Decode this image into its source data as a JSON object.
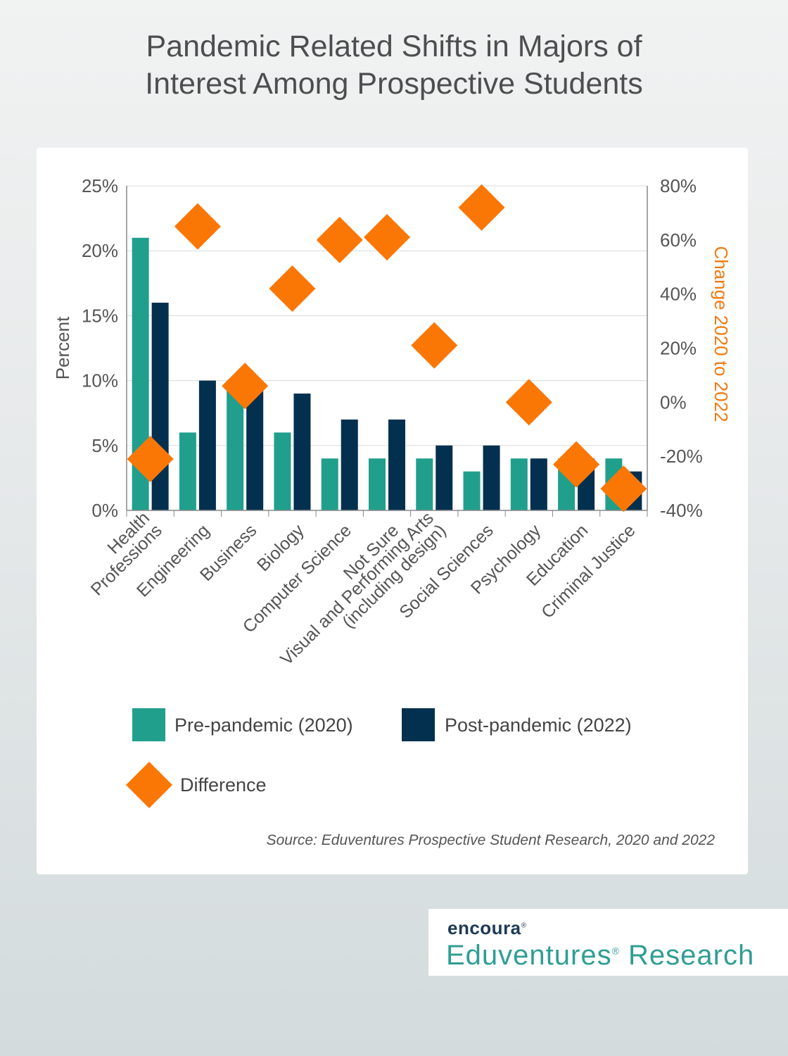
{
  "title": {
    "line1": "Pandemic Related Shifts in Majors of",
    "line2": "Interest Among Prospective Students"
  },
  "colors": {
    "pre": "#209f8c",
    "post": "#04304f",
    "difference": "#fa7706",
    "axis": "#888888",
    "grid": "#d9d9d9",
    "text": "#555555",
    "right_axis_title": "#f07a12"
  },
  "chart_data": {
    "type": "bar",
    "categories": [
      "Health Professions",
      "Engineering",
      "Business",
      "Biology",
      "Computer Science",
      "Not Sure",
      "Visual and Performing Arts (including design)",
      "Social Sciences",
      "Psychology",
      "Education",
      "Criminal Justice"
    ],
    "category_label_lines": [
      [
        "Health",
        "Professions"
      ],
      [
        "Engineering"
      ],
      [
        "Business"
      ],
      [
        "Biology"
      ],
      [
        "Computer Science"
      ],
      [
        "Not Sure"
      ],
      [
        "Visual and Performing Arts",
        "(including design)"
      ],
      [
        "Social Sciences"
      ],
      [
        "Psychology"
      ],
      [
        "Education"
      ],
      [
        "Criminal Justice"
      ]
    ],
    "series": [
      {
        "name": "Pre-pandemic (2020)",
        "axis": "left",
        "values": [
          21,
          6,
          9.5,
          6,
          4,
          4,
          4,
          3,
          4,
          4,
          4
        ]
      },
      {
        "name": "Post-pandemic (2022)",
        "axis": "left",
        "values": [
          16,
          10,
          9.5,
          9,
          7,
          7,
          5,
          5,
          4,
          4,
          3
        ]
      },
      {
        "name": "Difference",
        "axis": "right",
        "marker": "diamond",
        "values": [
          -21,
          65,
          6,
          42,
          60,
          61,
          21,
          72,
          0,
          -23,
          -32
        ]
      }
    ],
    "ylabel": "Percent",
    "ylim": [
      0,
      25
    ],
    "yticks": [
      0,
      5,
      10,
      15,
      20,
      25
    ],
    "ytick_labels": [
      "0%",
      "5%",
      "10%",
      "15%",
      "20%",
      "25%"
    ],
    "y2label": "Change 2020 to 2022",
    "y2lim": [
      -40,
      80
    ],
    "y2ticks": [
      -40,
      -20,
      0,
      20,
      40,
      60,
      80
    ],
    "y2tick_labels": [
      "-40%",
      "-20%",
      "0%",
      "20%",
      "40%",
      "60%",
      "80%"
    ],
    "grid": true,
    "legend_position": "bottom"
  },
  "legend": {
    "pre": "Pre-pandemic (2020)",
    "post": "Post-pandemic (2022)",
    "difference": "Difference"
  },
  "source": "Source: Eduventures Prospective Student Research, 2020 and 2022",
  "brand": {
    "logo": "encoura",
    "logo_mark": "®",
    "name": "Eduventures",
    "name_mark": "®",
    "name_suffix": " Research"
  }
}
